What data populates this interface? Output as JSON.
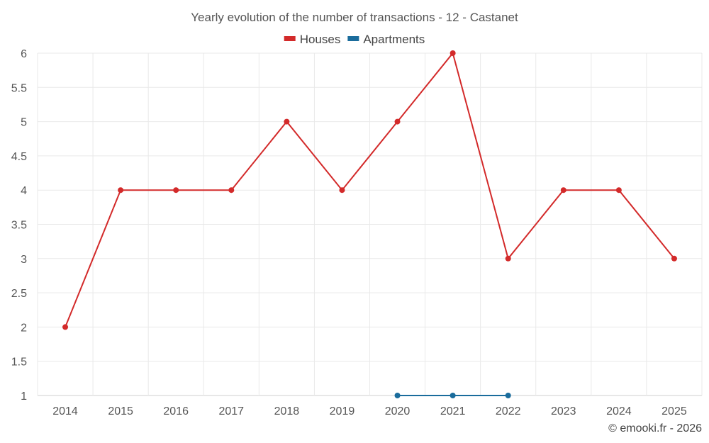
{
  "chart_data": {
    "type": "line",
    "title": "Yearly evolution of the number of transactions - 12 - Castanet",
    "categories": [
      "2014",
      "2015",
      "2016",
      "2017",
      "2018",
      "2019",
      "2020",
      "2021",
      "2022",
      "2023",
      "2024",
      "2025"
    ],
    "ylim": [
      1,
      6
    ],
    "yticks": [
      "1",
      "1.5",
      "2",
      "2.5",
      "3",
      "3.5",
      "4",
      "4.5",
      "5",
      "5.5",
      "6"
    ],
    "xlabel": "",
    "ylabel": "",
    "grid": true,
    "legend_position": "top-center",
    "series": [
      {
        "name": "Houses",
        "color": "#d32a2a",
        "values": [
          2,
          4,
          4,
          4,
          5,
          4,
          5,
          6,
          3,
          4,
          4,
          3
        ]
      },
      {
        "name": "Apartments",
        "color": "#1a6c9c",
        "values": [
          null,
          null,
          null,
          null,
          null,
          null,
          1,
          1,
          1,
          null,
          null,
          null
        ]
      }
    ]
  },
  "credit": "© emooki.fr - 2026"
}
